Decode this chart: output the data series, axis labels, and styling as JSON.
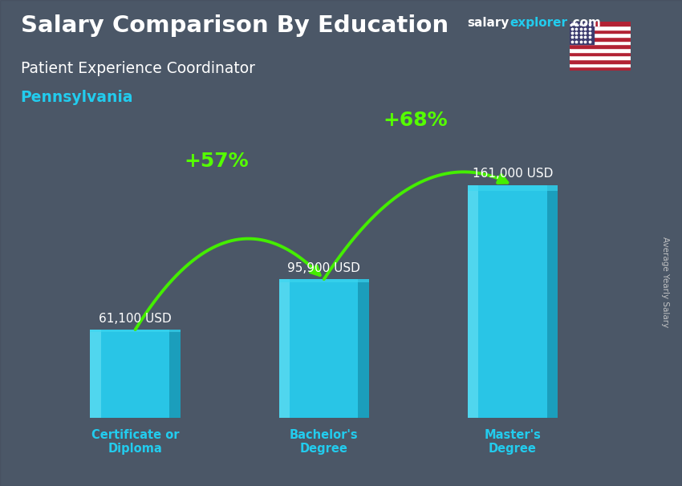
{
  "title": "Salary Comparison By Education",
  "subtitle1": "Patient Experience Coordinator",
  "subtitle2": "Pennsylvania",
  "watermark_salary": "salary",
  "watermark_explorer": "explorer",
  "watermark_com": ".com",
  "ylabel": "Average Yearly Salary",
  "categories": [
    "Certificate or\nDiploma",
    "Bachelor's\nDegree",
    "Master's\nDegree"
  ],
  "values": [
    61100,
    95900,
    161000
  ],
  "value_labels": [
    "61,100 USD",
    "95,900 USD",
    "161,000 USD"
  ],
  "bar_color": "#29c5e6",
  "bar_color_light": "#55d8f0",
  "bar_color_dark": "#1a9ab8",
  "bar_color_top": "#3dd6f0",
  "bg_color": "#5a6a7a",
  "title_color": "#ffffff",
  "subtitle1_color": "#ffffff",
  "subtitle2_color": "#22ccee",
  "arrow_color": "#44ee00",
  "pct_labels": [
    "+57%",
    "+68%"
  ],
  "pct_label_color": "#55ff00",
  "value_label_color": "#ffffff",
  "xtick_color": "#22ccee",
  "watermark_color1": "#ffffff",
  "watermark_color2": "#22ccee",
  "ylabel_color": "#cccccc",
  "bar_width": 0.55,
  "ylim": [
    0,
    215000
  ],
  "x_positions": [
    1.0,
    2.15,
    3.3
  ]
}
